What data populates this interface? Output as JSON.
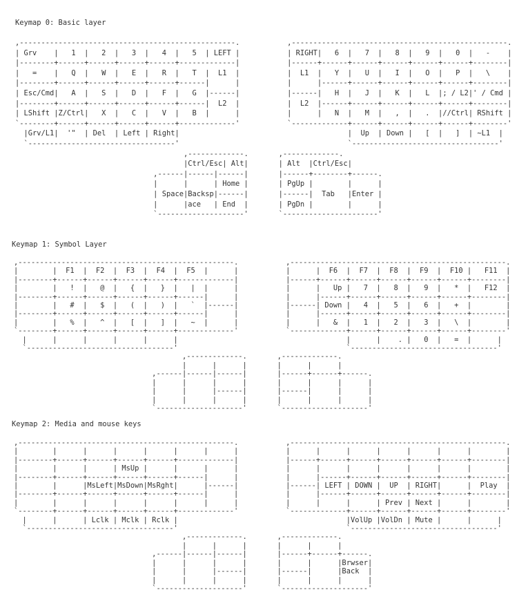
{
  "keymaps": [
    {
      "title": "Keymap 0: Basic layer",
      "lines": [
        ",--------------------------------------------------.           ,--------------------------------------------------.",
        "| Grv    |   1  |   2  |   3  |   4  |   5  | LEFT |           | RIGHT|   6  |   7  |   8  |   9  |   0  |   -    |",
        "|--------+------+------+------+------+-------------|           |------+------+------+------+------+------+--------|",
        "|   =    |   Q  |   W  |   E  |   R  |   T  |  L1  |           |  L1  |   Y  |   U  |   I  |   O  |   P  |   \\    |",
        "|--------+------+------+------+------+------|      |           |      |------+------+------+------+------+--------|",
        "| Esc/Cmd|   A  |   S  |   D  |   F  |   G  |------|           |------|   H  |   J  |   K  |   L  |; / L2|' / Cmd |",
        "|--------+------+------+------+------+------|  L2  |           |  L2  |------+------+------+------+------+--------|",
        "| LShift |Z/Ctrl|   X  |   C  |   V  |   B  |      |           |      |   N  |   M  |   ,  |   .  |//Ctrl| RShift |",
        "`--------+------+------+------+------+-------------'           `-------------+------+------+------+------+--------'",
        "  |Grv/L1|  '\"  | Del  | Left | Right|                                       |  Up  | Down |   [  |   ]  | ~L1  |",
        "  `----------------------------------'                                       `----------------------------------'",
        "                                       ,-------------.       ,-------------.",
        "                                       |Ctrl/Esc| Alt|       | Alt  |Ctrl/Esc|",
        "                                ,------|------|------|       |------+--------+------.",
        "                                |      |      | Home |       | PgUp |        |      |",
        "                                | Space|Backsp|------|       |------|  Tab   |Enter |",
        "                                |      |ace   | End  |       | PgDn |        |      |",
        "                                `--------------------'       `----------------------'"
      ]
    },
    {
      "title": "Keymap 1: Symbol Layer",
      "lines": [
        ",--------------------------------------------------.           ,--------------------------------------------------.",
        "|        |  F1  |  F2  |  F3  |  F4  |  F5  |      |           |      |  F6  |  F7  |  F8  |  F9  |  F10 |   F11  |",
        "|--------+------+------+------+------+-------------|           |------+------+------+------+------+------+--------|",
        "|        |   !  |   @  |   {  |   }  |   |  |      |           |      |   Up |   7  |   8  |   9  |   *  |   F12  |",
        "|--------+------+------+------+------+------|      |           |      |------+------+------+------+------+--------|",
        "|        |   #  |   $  |   (  |   )  |   `  |------|           |------| Down |   4  |   5  |   6  |   +  |        |",
        "|--------+------+------+------+------+------|      |           |      |------+------+------+------+------+--------|",
        "|        |   %  |   ^  |   [  |   ]  |   ~  |      |           |      |   &  |   1  |   2  |   3  |   \\  |        |",
        "`--------+------+------+------+------+-------------'           `-------------+------+------+------+------+--------'",
        "  |      |      |      |      |      |                                       |      |    . |   0  |   =  |      |",
        "  `----------------------------------'                                       `----------------------------------'",
        "                                       ,-------------.       ,-------------.",
        "                                       |      |      |       |      |      |",
        "                                ,------|------|------|       |------+------+------.",
        "                                |      |      |      |       |      |      |      |",
        "                                |      |      |------|       |------|      |      |",
        "                                |      |      |      |       |      |      |      |",
        "                                `--------------------'       `--------------------'"
      ]
    },
    {
      "title": "Keymap 2: Media and mouse keys",
      "lines": [
        ",--------------------------------------------------.           ,--------------------------------------------------.",
        "|        |      |      |      |      |      |      |           |      |      |      |      |      |      |        |",
        "|--------+------+------+------+------+-------------|           |------+------+------+------+------+------+--------|",
        "|        |      |      | MsUp |      |      |      |           |      |      |      |      |      |      |        |",
        "|--------+------+------+------+------+------|      |           |      |------+------+------+------+------+--------|",
        "|        |      |MsLeft|MsDown|MsRght|      |------|           |------| LEFT | DOWN |  UP  | RIGHT|      |  Play  |",
        "|--------+------+------+------+------+------|      |           |      |------+------+------+------+------+--------|",
        "|        |      |      |      |      |      |      |           |      |      |      | Prev | Next |      |        |",
        "`--------+------+------+------+------+-------------'           `-------------+------+------+------+------+--------'",
        "  |      |      | Lclk | Mclk | Rclk |                                       |VolUp |VolDn | Mute |      |      |",
        "  `----------------------------------'                                       `----------------------------------'",
        "                                       ,-------------.       ,-------------.",
        "                                       |      |      |       |      |      |",
        "                                ,------|------|------|       |------+------+------.",
        "                                |      |      |      |       |      |      |Brwser|",
        "                                |      |      |------|       |------|      |Back  |",
        "                                |      |      |      |       |      |      |      |",
        "                                `--------------------'       `--------------------'"
      ]
    }
  ]
}
